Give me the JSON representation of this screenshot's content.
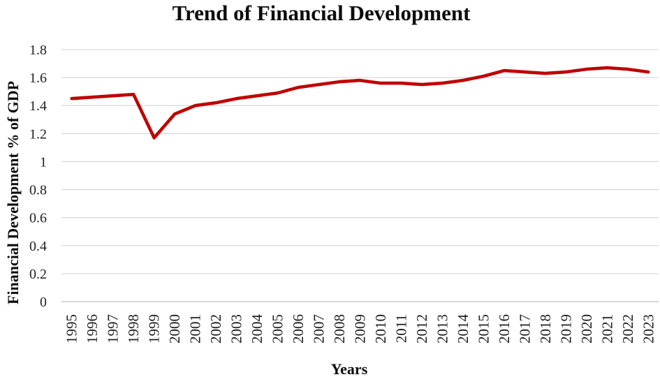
{
  "chart_data": {
    "type": "line",
    "title": "Trend of Financial Development",
    "xlabel": "Years",
    "ylabel": "Financial Development % of GDP",
    "categories": [
      "1995",
      "1996",
      "1997",
      "1998",
      "1999",
      "2000",
      "2001",
      "2002",
      "2003",
      "2004",
      "2005",
      "2006",
      "2007",
      "2008",
      "2009",
      "2010",
      "2011",
      "2012",
      "2013",
      "2014",
      "2015",
      "2016",
      "2017",
      "2018",
      "2019",
      "2020",
      "2021",
      "2022",
      "2023"
    ],
    "series": [
      {
        "name": "Financial Development % of GDP",
        "color": "#C00000",
        "values": [
          1.45,
          1.46,
          1.47,
          1.48,
          1.17,
          1.34,
          1.4,
          1.42,
          1.45,
          1.47,
          1.49,
          1.53,
          1.55,
          1.57,
          1.58,
          1.56,
          1.56,
          1.55,
          1.56,
          1.58,
          1.61,
          1.65,
          1.64,
          1.63,
          1.64,
          1.66,
          1.67,
          1.66,
          1.64
        ]
      }
    ],
    "ylim": [
      0,
      1.8
    ],
    "ytick_values": [
      0,
      0.2,
      0.4,
      0.6,
      0.8,
      1,
      1.2,
      1.4,
      1.6,
      1.8
    ],
    "ytick_labels": [
      "0",
      "0.2",
      "0.4",
      "0.6",
      "0.8",
      "1",
      "1.2",
      "1.4",
      "1.6",
      "1.8"
    ],
    "grid": true,
    "legend": false,
    "colors": {
      "line": "#C00000",
      "gridline": "#D9D9D9",
      "axis_line": "#BFBFBF",
      "tick_text": "#1f1f1f",
      "title_text": "#0d0d0d"
    }
  }
}
